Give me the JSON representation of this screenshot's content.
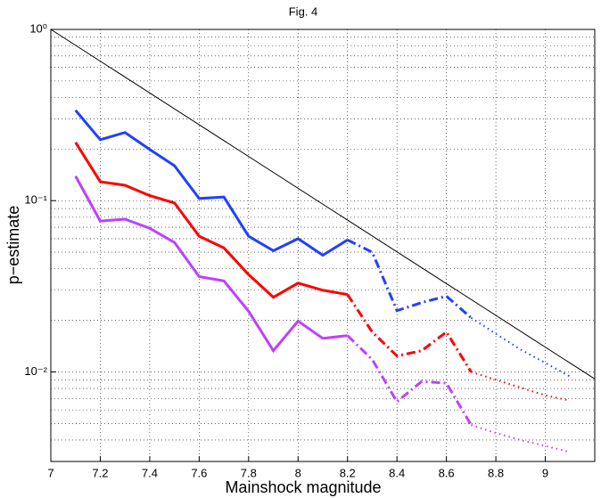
{
  "chart_data": {
    "type": "line",
    "title": "Fig. 4",
    "x_label": "Mainshock magnitude",
    "y_label": "p−estimate",
    "xlim": [
      7,
      9.2
    ],
    "xticks": [
      7,
      7.2,
      7.4,
      7.6,
      7.8,
      8,
      8.2,
      8.4,
      8.6,
      8.8,
      9
    ],
    "ylim": [
      0.003,
      1
    ],
    "y_log": true,
    "grid": true,
    "yticks": [
      {
        "value": 0.01,
        "label": "10⁻²"
      },
      {
        "value": 0.1,
        "label": "10⁻¹"
      },
      {
        "value": 1,
        "label": "10⁰"
      }
    ],
    "yminorticks": [
      0.004,
      0.005,
      0.006,
      0.007,
      0.008,
      0.009,
      0.02,
      0.03,
      0.04,
      0.05,
      0.06,
      0.07,
      0.08,
      0.09,
      0.2,
      0.3,
      0.4,
      0.5,
      0.6,
      0.7,
      0.8,
      0.9
    ],
    "series": [
      {
        "color": "#000000",
        "dash": "solid",
        "width": 1,
        "x": [
          7,
          9.2
        ],
        "values": [
          1,
          0.0091
        ]
      },
      {
        "color": "#2040ff",
        "dash": "solid",
        "width": 3,
        "x": [
          7.1,
          7.2,
          7.3,
          7.4,
          7.5,
          7.6,
          7.7,
          7.8,
          7.9,
          8.0,
          8.1,
          8.2
        ],
        "values": [
          0.337,
          0.227,
          0.25,
          0.199,
          0.16,
          0.103,
          0.105,
          0.062,
          0.051,
          0.06,
          0.048,
          0.059
        ]
      },
      {
        "color": "#2040ff",
        "dash": "dashdot",
        "width": 3,
        "x": [
          8.2,
          8.3,
          8.4,
          8.5,
          8.6,
          8.7
        ],
        "values": [
          0.059,
          0.05,
          0.0228,
          0.0254,
          0.0277,
          0.0207
        ]
      },
      {
        "color": "#2040ff",
        "dash": "dotted",
        "width": 2,
        "x": [
          8.7,
          8.8,
          8.9,
          9.0,
          9.1
        ],
        "values": [
          0.0207,
          0.0167,
          0.0135,
          0.0113,
          0.0094
        ]
      },
      {
        "color": "#ff0000",
        "dash": "solid",
        "width": 3,
        "x": [
          7.1,
          7.2,
          7.3,
          7.4,
          7.5,
          7.6,
          7.7,
          7.8,
          7.9,
          8.0,
          8.1,
          8.2
        ],
        "values": [
          0.219,
          0.129,
          0.123,
          0.107,
          0.097,
          0.062,
          0.053,
          0.037,
          0.0273,
          0.033,
          0.03,
          0.0283
        ]
      },
      {
        "color": "#ff0000",
        "dash": "dashdot",
        "width": 3,
        "x": [
          8.2,
          8.3,
          8.4,
          8.5,
          8.6,
          8.7
        ],
        "values": [
          0.0283,
          0.0171,
          0.0124,
          0.0133,
          0.0171,
          0.01
        ]
      },
      {
        "color": "#ff0000",
        "dash": "dotted",
        "width": 2,
        "x": [
          8.7,
          8.8,
          8.9,
          9.0,
          9.1
        ],
        "values": [
          0.01,
          0.009,
          0.0081,
          0.0073,
          0.0068
        ]
      },
      {
        "color": "#bf40ff",
        "dash": "solid",
        "width": 3,
        "x": [
          7.1,
          7.2,
          7.3,
          7.4,
          7.5,
          7.6,
          7.7,
          7.8,
          7.9,
          8.0,
          8.1,
          8.2
        ],
        "values": [
          0.139,
          0.076,
          0.078,
          0.069,
          0.057,
          0.036,
          0.034,
          0.0226,
          0.0133,
          0.0198,
          0.0157,
          0.0163
        ]
      },
      {
        "color": "#bf40ff",
        "dash": "dashdot",
        "width": 3,
        "x": [
          8.2,
          8.3,
          8.4,
          8.5,
          8.6,
          8.7
        ],
        "values": [
          0.0163,
          0.0118,
          0.0067,
          0.0088,
          0.0086,
          0.0049
        ]
      },
      {
        "color": "#bf40ff",
        "dash": "dotted",
        "width": 2,
        "x": [
          8.7,
          8.8,
          8.9,
          9.0,
          9.1
        ],
        "values": [
          0.0049,
          0.0044,
          0.004,
          0.0037,
          0.0034
        ]
      }
    ]
  }
}
